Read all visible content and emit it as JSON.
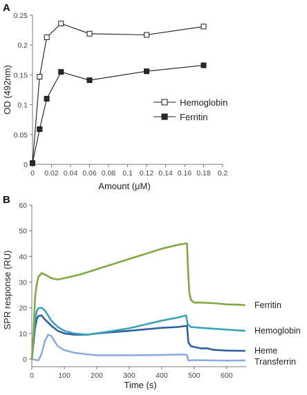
{
  "chart_data": [
    {
      "panel": "A",
      "type": "line",
      "xlabel": "Amount (μM)",
      "ylabel": "OD (492nm)",
      "xlim": [
        0,
        0.2
      ],
      "ylim": [
        0,
        0.25
      ],
      "xticks": [
        "0",
        "0.02",
        "0.04",
        "0.06",
        "0.08",
        "0.1",
        "0.12",
        "0.14",
        "0.16",
        "0.18",
        "0.2"
      ],
      "yticks": [
        "0",
        "0.05",
        "0.1",
        "0.15",
        "0.2",
        "0.25"
      ],
      "legend_position": "right-middle",
      "grid": false,
      "series": [
        {
          "name": "Hemoglobin",
          "marker": "open-square",
          "color": "#000000",
          "x": [
            0,
            0.0075,
            0.015,
            0.03,
            0.06,
            0.12,
            0.18
          ],
          "y": [
            0.002,
            0.147,
            0.213,
            0.236,
            0.219,
            0.217,
            0.231
          ]
        },
        {
          "name": "Ferritin",
          "marker": "filled-square",
          "color": "#000000",
          "x": [
            0,
            0.0075,
            0.015,
            0.03,
            0.06,
            0.12,
            0.18
          ],
          "y": [
            0.002,
            0.059,
            0.11,
            0.155,
            0.141,
            0.156,
            0.166
          ]
        }
      ]
    },
    {
      "panel": "B",
      "type": "line",
      "xlabel": "Time (s)",
      "ylabel": "SPR response (RU)",
      "xlim": [
        0,
        660
      ],
      "ylim": [
        -2,
        60
      ],
      "xticks": [
        "0",
        "100",
        "200",
        "300",
        "400",
        "500",
        "600"
      ],
      "yticks": [
        "0",
        "10",
        "20",
        "30",
        "40",
        "50",
        "60"
      ],
      "label_position": "right-end",
      "grid": false,
      "series": [
        {
          "name": "Ferritin",
          "color": "#7fa843",
          "x": [
            0,
            5,
            10,
            15,
            20,
            30,
            40,
            60,
            80,
            100,
            150,
            200,
            300,
            400,
            450,
            470,
            478,
            481,
            485,
            490,
            500,
            520,
            560,
            600,
            640,
            655
          ],
          "y": [
            0,
            9,
            24,
            29,
            32,
            33.5,
            33,
            31.5,
            31,
            31.5,
            33,
            35,
            39,
            43,
            44.5,
            45,
            45,
            35,
            26,
            23,
            22,
            22,
            21.8,
            21.3,
            21.2,
            21
          ]
        },
        {
          "name": "Hemoglobin",
          "color": "#3aa1b6",
          "x": [
            0,
            5,
            10,
            15,
            20,
            30,
            40,
            60,
            80,
            100,
            130,
            170,
            200,
            300,
            400,
            450,
            475,
            480,
            490,
            520,
            600,
            655
          ],
          "y": [
            0,
            8,
            15,
            18.5,
            19.8,
            20,
            19,
            15,
            12.5,
            11,
            10,
            9.5,
            10,
            12,
            15,
            16.2,
            17,
            13.5,
            12.5,
            12.2,
            11.5,
            11
          ]
        },
        {
          "name": "Heme",
          "color": "#2f5f9e",
          "x": [
            0,
            5,
            10,
            15,
            20,
            30,
            40,
            60,
            80,
            100,
            130,
            170,
            200,
            300,
            400,
            450,
            478,
            482,
            490,
            520,
            540,
            560,
            600,
            655
          ],
          "y": [
            0,
            6,
            12,
            15.5,
            16.8,
            17,
            15.5,
            13,
            11,
            10,
            9.5,
            9.5,
            10,
            11,
            12.2,
            12.5,
            13,
            6.5,
            5,
            4.2,
            4.2,
            3.6,
            3.3,
            3.2
          ]
        },
        {
          "name": "Transferrin",
          "color": "#8faadc",
          "x": [
            0,
            20,
            30,
            40,
            50,
            60,
            70,
            80,
            100,
            130,
            160,
            200,
            300,
            400,
            470,
            478,
            482,
            500,
            600,
            655
          ],
          "y": [
            0,
            -0.5,
            2,
            7,
            9.5,
            9,
            7,
            5,
            3.5,
            2.5,
            2,
            1.5,
            1.5,
            1.6,
            1.8,
            1.5,
            -0.6,
            -0.4,
            -0.6,
            -0.5
          ]
        }
      ]
    }
  ],
  "panels": {
    "a": {
      "label": "A",
      "xlabel": "Amount (μM)",
      "ylabel": "OD (492nm)",
      "legend": [
        "Hemoglobin",
        "Ferritin"
      ]
    },
    "b": {
      "label": "B",
      "xlabel": "Time (s)",
      "ylabel": "SPR response (RU)",
      "series_labels": [
        "Ferritin",
        "Hemoglobin",
        "Heme",
        "Transferrin"
      ]
    }
  }
}
